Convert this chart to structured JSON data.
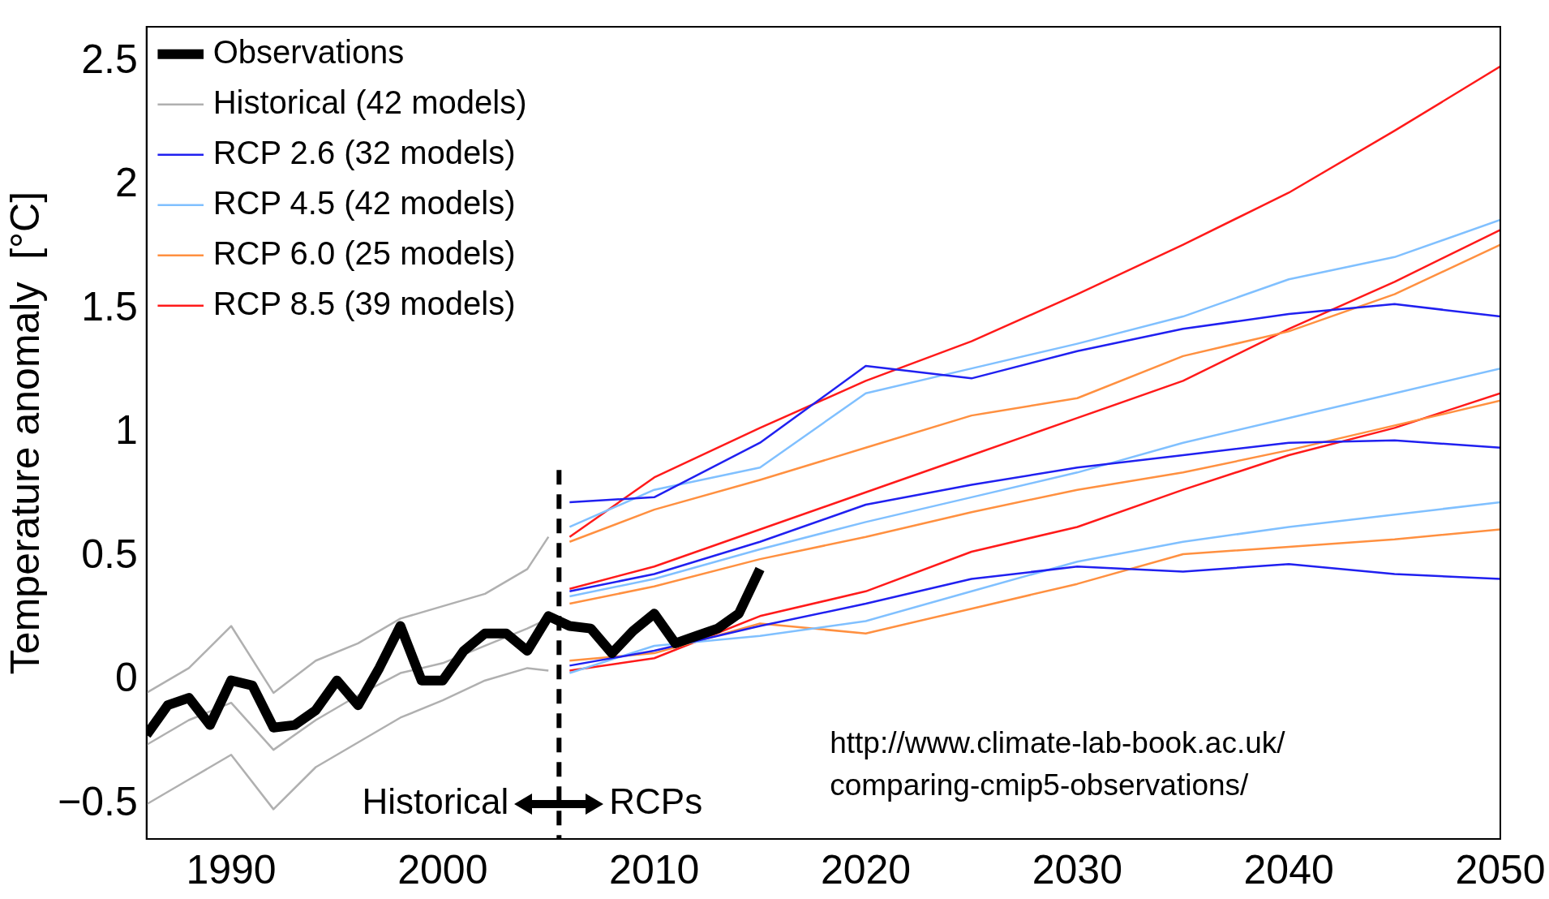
{
  "chart_data": {
    "type": "line",
    "ylabel": "Temperature anomaly  [°C]",
    "xlim": [
      1986,
      2050
    ],
    "xticks": [
      1990,
      2000,
      2010,
      2020,
      2030,
      2040,
      2050
    ],
    "ylim": [
      -0.64,
      2.64
    ],
    "yticks": [
      {
        "value": -0.5,
        "label": "−0.5"
      },
      0,
      0.5,
      1,
      1.5,
      2,
      2.5
    ],
    "grid": false,
    "legend": "top left",
    "marker": "none",
    "series": [
      {
        "name": "Observations",
        "color": "#000000",
        "x": [
          1986,
          1987,
          1988,
          1989,
          1990,
          1991,
          1992,
          1993,
          1994,
          1995,
          1996,
          1997,
          1998,
          1999,
          2000,
          2001,
          2002,
          2003,
          2004,
          2005,
          2006,
          2007,
          2008,
          2009,
          2010,
          2011,
          2012,
          2013,
          2014,
          2015
        ],
        "values": [
          -0.22,
          -0.1,
          -0.07,
          -0.18,
          0.0,
          -0.02,
          -0.19,
          -0.18,
          -0.12,
          0.0,
          -0.1,
          0.05,
          0.22,
          0.0,
          0.0,
          0.12,
          0.19,
          0.19,
          0.12,
          0.26,
          0.22,
          0.21,
          0.11,
          0.2,
          0.27,
          0.15,
          0.18,
          0.21,
          0.27,
          0.45
        ]
      },
      {
        "name": "Historical (42 models)",
        "color": "#b0b0b0",
        "x": [
          1986,
          1988,
          1990,
          1992,
          1994,
          1996,
          1998,
          2000,
          2002,
          2004,
          2005
        ],
        "values": [
          -0.26,
          -0.16,
          -0.09,
          -0.28,
          -0.16,
          -0.06,
          0.03,
          0.07,
          0.14,
          0.21,
          0.25
        ]
      },
      {
        "color": "#b0b0b0",
        "x": [
          1986,
          1988,
          1990,
          1992,
          1994,
          1996,
          1998,
          2000,
          2002,
          2004,
          2005
        ],
        "values": [
          -0.05,
          0.05,
          0.22,
          -0.05,
          0.08,
          0.15,
          0.25,
          0.3,
          0.35,
          0.45,
          0.58
        ]
      },
      {
        "color": "#b0b0b0",
        "x": [
          1986,
          1988,
          1990,
          1992,
          1994,
          1996,
          1998,
          2000,
          2002,
          2004,
          2005
        ],
        "values": [
          -0.5,
          -0.4,
          -0.3,
          -0.52,
          -0.35,
          -0.25,
          -0.15,
          -0.08,
          0.0,
          0.05,
          0.04
        ]
      },
      {
        "name": "RCP 2.6 (32 models)",
        "color": "#2020f0",
        "x": [
          2006,
          2010,
          2015,
          2020,
          2025,
          2030,
          2035,
          2040,
          2045,
          2050
        ],
        "values": [
          0.36,
          0.43,
          0.56,
          0.71,
          0.79,
          0.86,
          0.91,
          0.96,
          0.97,
          0.94
        ]
      },
      {
        "color": "#2020f0",
        "x": [
          2006,
          2010,
          2015,
          2020,
          2025,
          2030,
          2035,
          2040,
          2045,
          2050
        ],
        "values": [
          0.72,
          0.74,
          0.96,
          1.27,
          1.22,
          1.33,
          1.42,
          1.48,
          1.52,
          1.47
        ]
      },
      {
        "color": "#2020f0",
        "x": [
          2006,
          2010,
          2015,
          2020,
          2025,
          2030,
          2035,
          2040,
          2045,
          2050
        ],
        "values": [
          0.06,
          0.12,
          0.22,
          0.31,
          0.41,
          0.46,
          0.44,
          0.47,
          0.43,
          0.41
        ]
      },
      {
        "name": "RCP 4.5 (42 models)",
        "color": "#80c0ff",
        "x": [
          2006,
          2010,
          2015,
          2020,
          2025,
          2030,
          2035,
          2040,
          2045,
          2050
        ],
        "values": [
          0.34,
          0.41,
          0.53,
          0.64,
          0.74,
          0.84,
          0.96,
          1.06,
          1.16,
          1.26
        ]
      },
      {
        "color": "#80c0ff",
        "x": [
          2006,
          2010,
          2015,
          2020,
          2025,
          2030,
          2035,
          2040,
          2045,
          2050
        ],
        "values": [
          0.62,
          0.77,
          0.86,
          1.16,
          1.26,
          1.36,
          1.47,
          1.62,
          1.71,
          1.86
        ]
      },
      {
        "color": "#80c0ff",
        "x": [
          2006,
          2010,
          2015,
          2020,
          2025,
          2030,
          2035,
          2040,
          2045,
          2050
        ],
        "values": [
          0.03,
          0.14,
          0.18,
          0.24,
          0.36,
          0.48,
          0.56,
          0.62,
          0.67,
          0.72
        ]
      },
      {
        "name": "RCP 6.0 (25 models)",
        "color": "#ff9040",
        "x": [
          2006,
          2010,
          2015,
          2020,
          2025,
          2030,
          2035,
          2040,
          2045,
          2050
        ],
        "values": [
          0.31,
          0.38,
          0.49,
          0.58,
          0.68,
          0.77,
          0.84,
          0.93,
          1.03,
          1.13
        ]
      },
      {
        "color": "#ff9040",
        "x": [
          2006,
          2010,
          2015,
          2020,
          2025,
          2030,
          2035,
          2040,
          2045,
          2050
        ],
        "values": [
          0.56,
          0.69,
          0.81,
          0.94,
          1.07,
          1.14,
          1.31,
          1.41,
          1.56,
          1.76
        ]
      },
      {
        "color": "#ff9040",
        "x": [
          2006,
          2010,
          2015,
          2020,
          2025,
          2030,
          2035,
          2040,
          2045,
          2050
        ],
        "values": [
          0.08,
          0.11,
          0.23,
          0.19,
          0.29,
          0.39,
          0.51,
          0.54,
          0.57,
          0.61
        ]
      },
      {
        "name": "RCP 8.5 (39 models)",
        "color": "#ff1a1a",
        "x": [
          2006,
          2010,
          2015,
          2020,
          2025,
          2030,
          2035,
          2040,
          2045,
          2050
        ],
        "values": [
          0.37,
          0.46,
          0.61,
          0.76,
          0.91,
          1.06,
          1.21,
          1.42,
          1.61,
          1.82
        ]
      },
      {
        "color": "#ff1a1a",
        "x": [
          2006,
          2010,
          2015,
          2020,
          2025,
          2030,
          2035,
          2040,
          2045,
          2050
        ],
        "values": [
          0.58,
          0.82,
          1.02,
          1.21,
          1.37,
          1.56,
          1.76,
          1.97,
          2.22,
          2.48
        ]
      },
      {
        "color": "#ff1a1a",
        "x": [
          2006,
          2010,
          2015,
          2020,
          2025,
          2030,
          2035,
          2040,
          2045,
          2050
        ],
        "values": [
          0.04,
          0.09,
          0.26,
          0.36,
          0.52,
          0.62,
          0.77,
          0.91,
          1.02,
          1.16
        ]
      }
    ],
    "ref_lines": [
      {
        "axis": "x",
        "value": 2005.5,
        "label": null,
        "color": "#000000",
        "line_style": "dashed"
      }
    ],
    "annotations": [
      "Historical",
      "RCPs",
      "http://www.climate-lab-book.ac.uk/",
      "comparing-cmip5-observations/"
    ]
  }
}
